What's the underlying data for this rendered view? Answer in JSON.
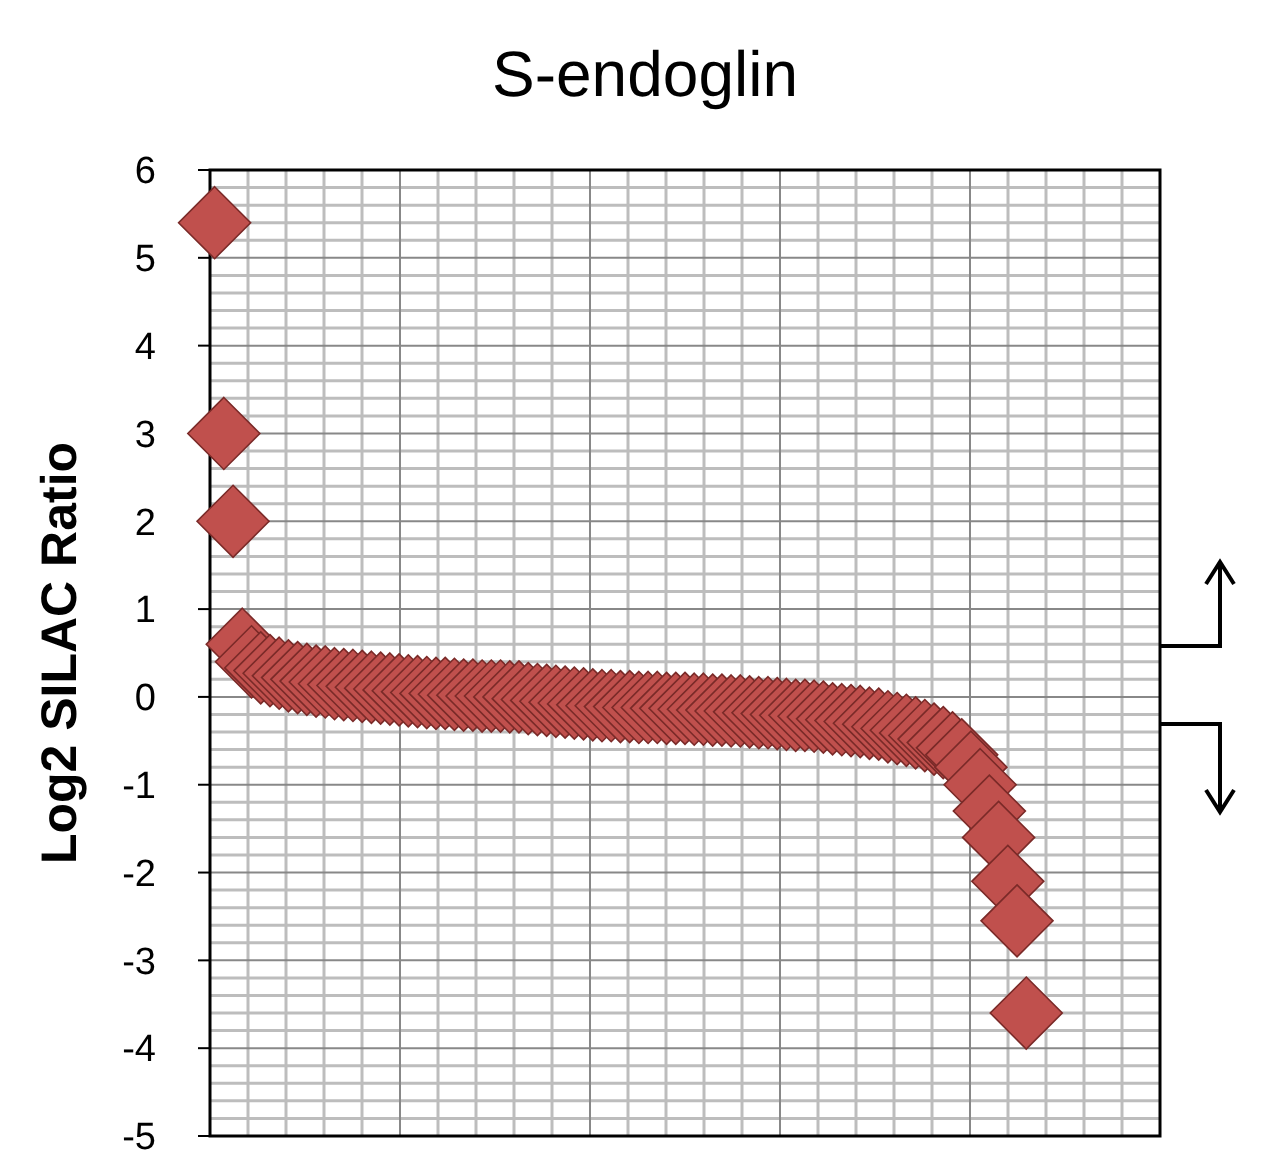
{
  "chart_data": {
    "type": "scatter",
    "title": "S-endoglin",
    "ylabel": "Log2  SILAC  Ratio",
    "categories": [
      null,
      null,
      null,
      null,
      null,
      null,
      null,
      null,
      null,
      null,
      null,
      null,
      null,
      null,
      null,
      null,
      null,
      null,
      null,
      null,
      null,
      null,
      null,
      null,
      null,
      null,
      null,
      null,
      null,
      null,
      null,
      null,
      null,
      null,
      null,
      null,
      null,
      null,
      null,
      null,
      null,
      null,
      null,
      null,
      null,
      null,
      null,
      null,
      null,
      null,
      null,
      null,
      null,
      null,
      null,
      null,
      null,
      null,
      null,
      null,
      null,
      null,
      null,
      null,
      null,
      null,
      null,
      null,
      null,
      null,
      null,
      null,
      null,
      null,
      null,
      null,
      null,
      null,
      null,
      null,
      null,
      null,
      null,
      null,
      null,
      null,
      null,
      null,
      null,
      null,
      null,
      null,
      null,
      null,
      null,
      null,
      null,
      null,
      null,
      null,
      null,
      null,
      null
    ],
    "ylim": [
      -5,
      6
    ],
    "yticks": [
      -5,
      -4,
      -3,
      -2,
      -1,
      0,
      1,
      2,
      3,
      4,
      5,
      6
    ],
    "grid": true,
    "tick_labels": "y",
    "marker": "diamond",
    "series": [
      {
        "color": "#c0504d",
        "values": [
          5.4,
          3.0,
          2.0,
          0.6,
          0.4,
          0.33,
          0.3,
          0.27,
          0.24,
          0.22,
          0.2,
          0.18,
          0.17,
          0.15,
          0.14,
          0.13,
          0.12,
          0.11,
          0.1,
          0.09,
          0.08,
          0.07,
          0.06,
          0.05,
          0.04,
          0.04,
          0.03,
          0.02,
          0.02,
          0.01,
          0.01,
          0.01,
          0,
          0,
          -0.02,
          -0.03,
          -0.04,
          -0.05,
          -0.06,
          -0.07,
          -0.08,
          -0.09,
          -0.1,
          -0.1,
          -0.11,
          -0.11,
          -0.12,
          -0.12,
          -0.12,
          -0.13,
          -0.13,
          -0.13,
          -0.14,
          -0.14,
          -0.15,
          -0.15,
          -0.16,
          -0.16,
          -0.17,
          -0.18,
          -0.18,
          -0.19,
          -0.2,
          -0.21,
          -0.21,
          -0.22,
          -0.23,
          -0.25,
          -0.26,
          -0.27,
          -0.28,
          -0.3,
          -0.31,
          -0.34,
          -0.36,
          -0.38,
          -0.41,
          -0.44,
          -0.48,
          -0.52,
          -0.58,
          -0.66,
          -0.8,
          -1.0,
          -1.3,
          -1.6,
          -2.1,
          -2.55,
          -3.6,
          null,
          null,
          null,
          null,
          null,
          null,
          null,
          null,
          null,
          null,
          null,
          null,
          null,
          null
        ]
      }
    ]
  }
}
